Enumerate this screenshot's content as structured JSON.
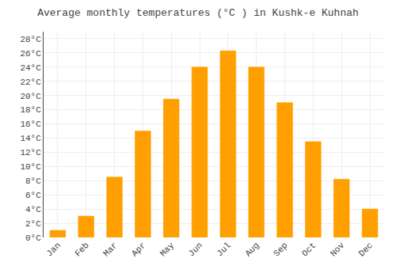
{
  "chart_data": {
    "type": "bar",
    "title": "Average monthly temperatures (°C ) in Kushk-e Kuhnah",
    "categories": [
      "Jan",
      "Feb",
      "Mar",
      "Apr",
      "May",
      "Jun",
      "Jul",
      "Aug",
      "Sep",
      "Oct",
      "Nov",
      "Dec"
    ],
    "values": [
      1,
      3,
      8.5,
      15,
      19.5,
      24,
      26.3,
      24,
      19,
      13.5,
      8.2,
      4
    ],
    "color": "#FFA000",
    "ylim": [
      0,
      29
    ],
    "yticks": [
      {
        "value": 0,
        "label": "0°C"
      },
      {
        "value": 2,
        "label": "2°C"
      },
      {
        "value": 4,
        "label": "4°C"
      },
      {
        "value": 6,
        "label": "6°C"
      },
      {
        "value": 8,
        "label": "8°C"
      },
      {
        "value": 10,
        "label": "10°C"
      },
      {
        "value": 12,
        "label": "12°C"
      },
      {
        "value": 14,
        "label": "14°C"
      },
      {
        "value": 16,
        "label": "16°C"
      },
      {
        "value": 18,
        "label": "18°C"
      },
      {
        "value": 20,
        "label": "20°C"
      },
      {
        "value": 22,
        "label": "22°C"
      },
      {
        "value": 24,
        "label": "24°C"
      },
      {
        "value": 26,
        "label": "26°C"
      },
      {
        "value": 28,
        "label": "28°C"
      }
    ],
    "grid": true
  }
}
